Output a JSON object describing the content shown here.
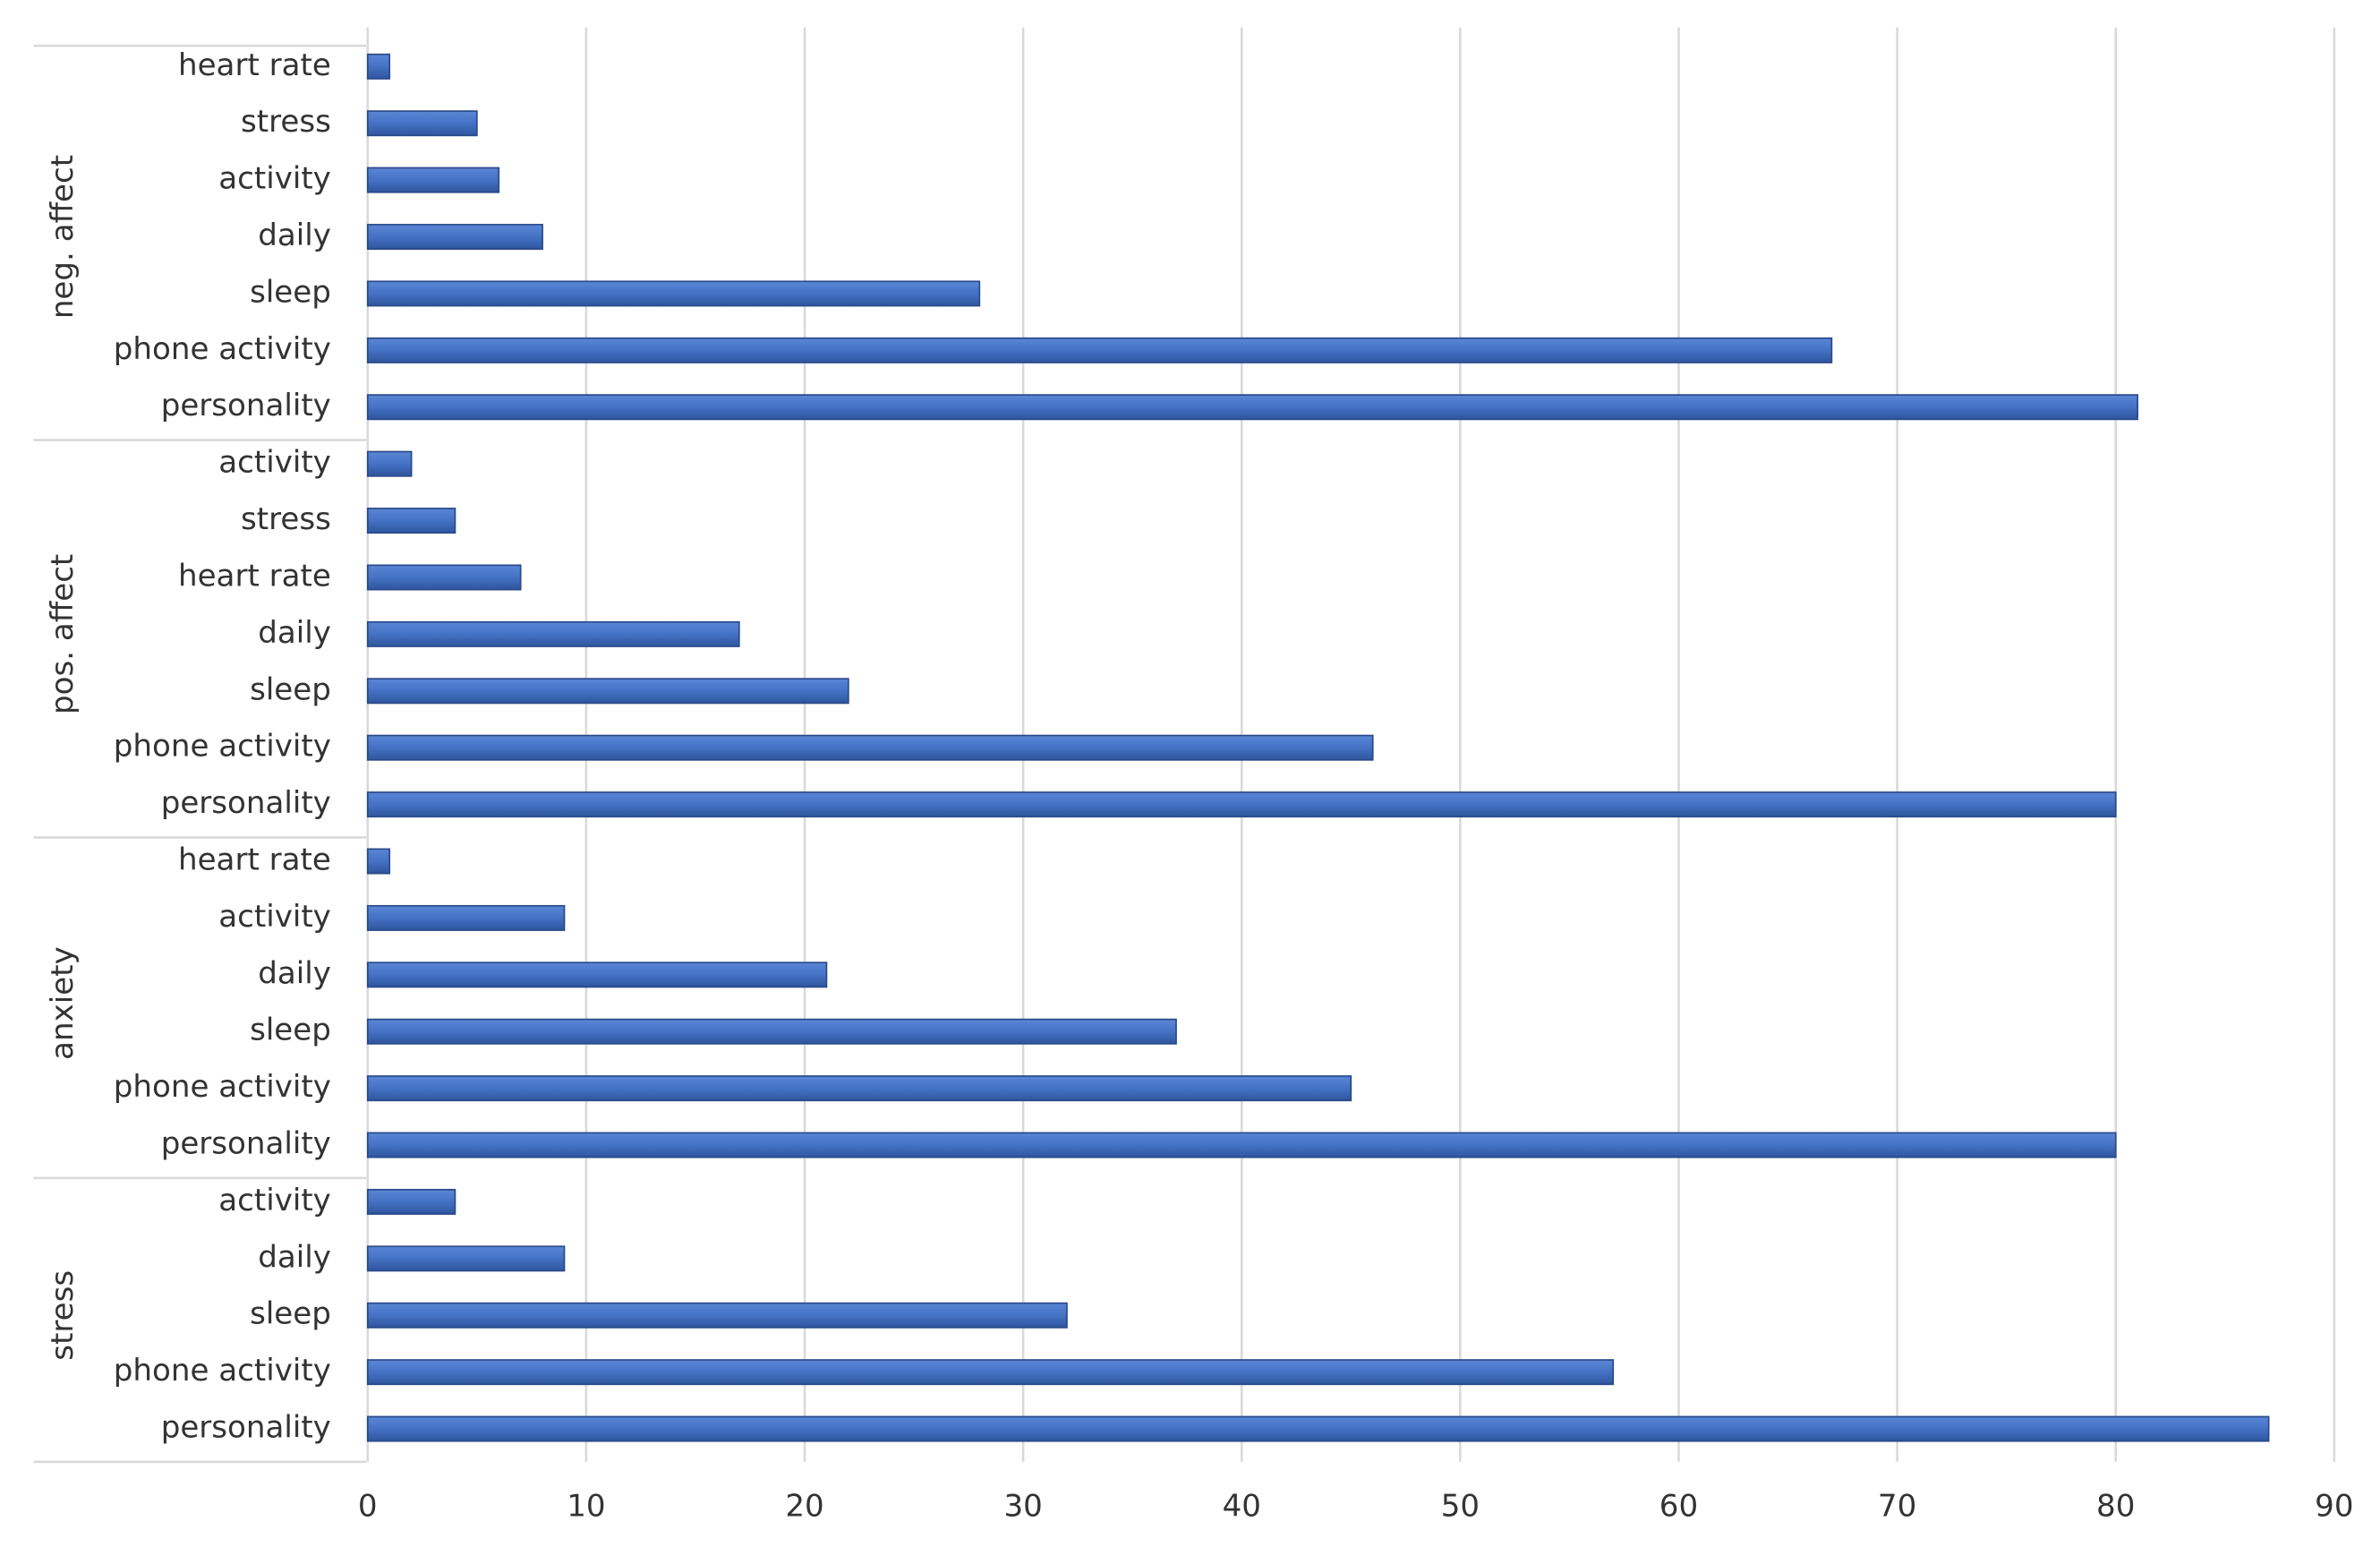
{
  "chart_data": {
    "type": "bar",
    "groups": [
      {
        "name": "neg. affect",
        "categories": [
          "heart rate",
          "stress",
          "activity",
          "daily",
          "sleep",
          "phone activity",
          "personality"
        ],
        "values": [
          1,
          5,
          6,
          8,
          28,
          67,
          81
        ]
      },
      {
        "name": "pos. affect",
        "categories": [
          "activity",
          "stress",
          "heart rate",
          "daily",
          "sleep",
          "phone activity",
          "personality"
        ],
        "values": [
          2,
          4,
          7,
          17,
          22,
          46,
          80
        ]
      },
      {
        "name": "anxiety",
        "categories": [
          "heart rate",
          "activity",
          "daily",
          "sleep",
          "phone activity",
          "personality"
        ],
        "values": [
          1,
          9,
          21,
          37,
          45,
          80
        ]
      },
      {
        "name": "stress",
        "categories": [
          "activity",
          "daily",
          "sleep",
          "phone activity",
          "personality"
        ],
        "values": [
          4,
          9,
          32,
          57,
          87
        ]
      }
    ],
    "color": "#4472c4",
    "xlim": [
      0,
      90
    ],
    "xticks": [
      0,
      10,
      20,
      30,
      40,
      50,
      60,
      70,
      80,
      90
    ],
    "grid": true
  }
}
